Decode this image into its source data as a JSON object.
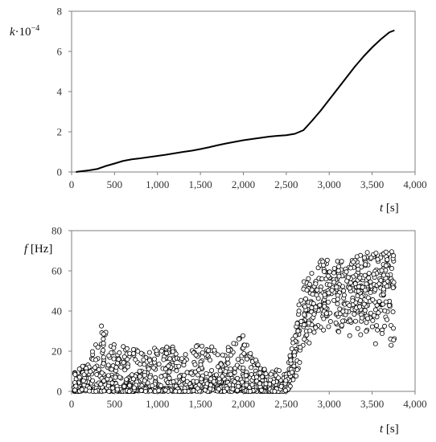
{
  "chart_data": [
    {
      "type": "line",
      "ylabel_main": "k",
      "ylabel_exp": "·10",
      "ylabel_sup": "−4",
      "xlabel_main": "t",
      "xlabel_unit": " [s]",
      "xlim": [
        0,
        4000
      ],
      "ylim": [
        0,
        8
      ],
      "x_ticks": [
        0,
        500,
        1000,
        1500,
        2000,
        2500,
        3000,
        3500,
        4000
      ],
      "x_tick_labels": [
        "0",
        "500",
        "1,000",
        "1,500",
        "2,000",
        "2,500",
        "3,000",
        "3,500",
        "4,000"
      ],
      "y_ticks": [
        0,
        2,
        4,
        6,
        8
      ],
      "y_tick_labels": [
        "0",
        "2",
        "4",
        "6",
        "8"
      ],
      "grid": false,
      "series": [
        {
          "x": [
            50,
            100,
            200,
            300,
            400,
            500,
            600,
            700,
            800,
            900,
            1000,
            1100,
            1200,
            1300,
            1400,
            1500,
            1600,
            1700,
            1800,
            1900,
            2000,
            2100,
            2200,
            2300,
            2400,
            2500,
            2600,
            2700,
            2800,
            2900,
            3000,
            3100,
            3200,
            3300,
            3400,
            3500,
            3600,
            3700,
            3760
          ],
          "y": [
            0.0,
            0.03,
            0.08,
            0.15,
            0.3,
            0.42,
            0.55,
            0.63,
            0.68,
            0.74,
            0.8,
            0.86,
            0.93,
            1.0,
            1.06,
            1.14,
            1.23,
            1.33,
            1.42,
            1.5,
            1.58,
            1.64,
            1.7,
            1.76,
            1.8,
            1.83,
            1.9,
            2.08,
            2.55,
            3.05,
            3.6,
            4.15,
            4.7,
            5.25,
            5.75,
            6.2,
            6.6,
            6.95,
            7.05
          ]
        }
      ]
    },
    {
      "type": "scatter",
      "ylabel_main": "f",
      "ylabel_unit": " [Hz]",
      "xlabel_main": "t",
      "xlabel_unit": " [s]",
      "xlim": [
        0,
        4000
      ],
      "ylim": [
        0,
        80
      ],
      "x_ticks": [
        0,
        500,
        1000,
        1500,
        2000,
        2500,
        3000,
        3500,
        4000
      ],
      "x_tick_labels": [
        "0",
        "500",
        "1,000",
        "1,500",
        "2,000",
        "2,500",
        "3,000",
        "3,500",
        "4,000"
      ],
      "y_ticks": [
        0,
        20,
        40,
        60,
        80
      ],
      "y_tick_labels": [
        "0",
        "20",
        "40",
        "60",
        "80"
      ],
      "grid": false,
      "point_style": "open-circle",
      "n_points": 1500,
      "x_range": [
        30,
        3760
      ],
      "trend": [
        {
          "x": 0,
          "low": 0,
          "mid": 5,
          "high": 10
        },
        {
          "x": 200,
          "low": 0,
          "mid": 6,
          "high": 15
        },
        {
          "x": 350,
          "low": 0,
          "mid": 10,
          "high": 34
        },
        {
          "x": 500,
          "low": 0,
          "mid": 8,
          "high": 24
        },
        {
          "x": 800,
          "low": 0,
          "mid": 6,
          "high": 20
        },
        {
          "x": 1000,
          "low": 0,
          "mid": 6,
          "high": 22
        },
        {
          "x": 1500,
          "low": 0,
          "mid": 7,
          "high": 25
        },
        {
          "x": 1750,
          "low": 0,
          "mid": 6,
          "high": 20
        },
        {
          "x": 2000,
          "low": 0,
          "mid": 6,
          "high": 28
        },
        {
          "x": 2200,
          "low": 0,
          "mid": 5,
          "high": 12
        },
        {
          "x": 2500,
          "low": 0,
          "mid": 4,
          "high": 10
        },
        {
          "x": 2600,
          "low": 5,
          "mid": 20,
          "high": 33
        },
        {
          "x": 2700,
          "low": 20,
          "mid": 38,
          "high": 55
        },
        {
          "x": 2900,
          "low": 30,
          "mid": 47,
          "high": 66
        },
        {
          "x": 3200,
          "low": 28,
          "mid": 50,
          "high": 68
        },
        {
          "x": 3500,
          "low": 18,
          "mid": 50,
          "high": 70
        },
        {
          "x": 3760,
          "low": 15,
          "mid": 50,
          "high": 70
        }
      ]
    }
  ]
}
